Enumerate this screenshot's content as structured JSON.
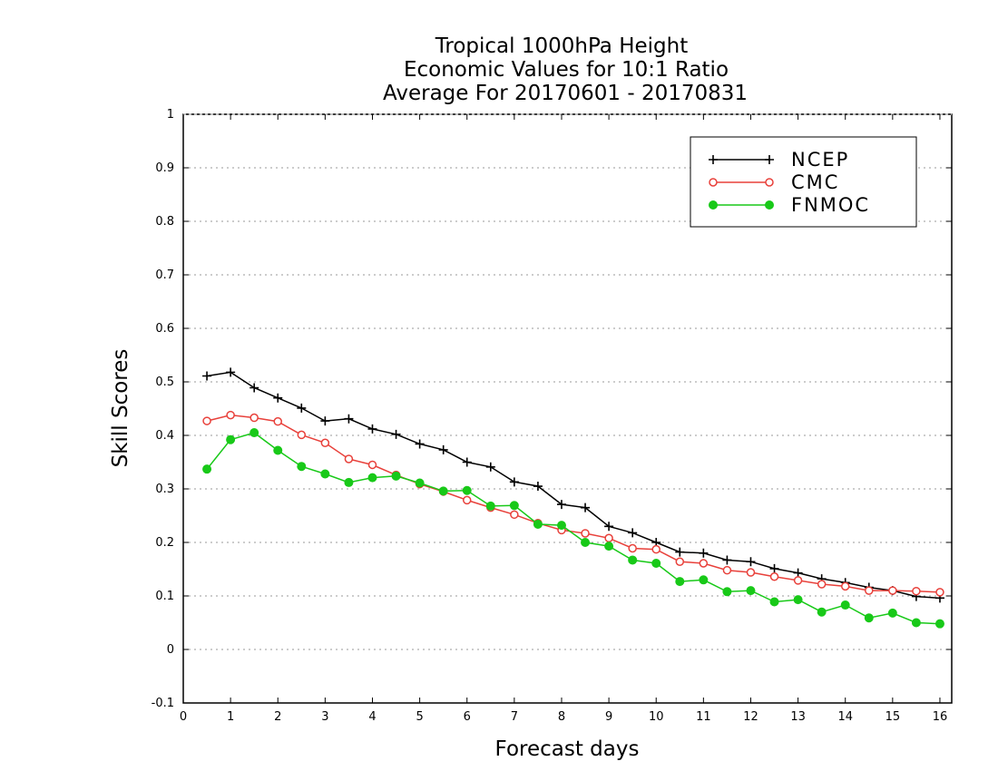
{
  "chart_data": {
    "type": "line",
    "title": [
      "Tropical 1000hPa Height",
      "Economic Values for 10:1 Ratio",
      "Average For 20170601 - 20170831"
    ],
    "xlabel": "Forecast days",
    "ylabel": "Skill Scores",
    "xlim": [
      0,
      16.25
    ],
    "ylim": [
      -0.1,
      1
    ],
    "xticks": [
      0,
      1,
      2,
      3,
      4,
      5,
      6,
      7,
      8,
      9,
      10,
      11,
      12,
      13,
      14,
      15,
      16
    ],
    "yticks": [
      -0.1,
      0,
      0.1,
      0.2,
      0.3,
      0.4,
      0.5,
      0.6,
      0.7,
      0.8,
      0.9,
      1
    ],
    "ytick_labels": [
      "-0.1",
      "0",
      "0.1",
      "0.2",
      "0.3",
      "0.4",
      "0.5",
      "0.6",
      "0.7",
      "0.8",
      "0.9",
      "1"
    ],
    "grid": true,
    "legend_position": "top-right",
    "x": [
      0.5,
      1,
      1.5,
      2,
      2.5,
      3,
      3.5,
      4,
      4.5,
      5,
      5.5,
      6,
      6.5,
      7,
      7.5,
      8,
      8.5,
      9,
      9.5,
      10,
      10.5,
      11,
      11.5,
      12,
      12.5,
      13,
      13.5,
      14,
      14.5,
      15,
      15.5,
      16
    ],
    "series": [
      {
        "name": "NCEP",
        "color": "#000000",
        "marker": "plus",
        "values": [
          0.511,
          0.518,
          0.489,
          0.47,
          0.451,
          0.427,
          0.431,
          0.412,
          0.402,
          0.384,
          0.373,
          0.35,
          0.341,
          0.313,
          0.305,
          0.271,
          0.265,
          0.23,
          0.218,
          0.2,
          0.182,
          0.18,
          0.167,
          0.164,
          0.151,
          0.143,
          0.132,
          0.125,
          0.116,
          0.11,
          0.099,
          0.096
        ]
      },
      {
        "name": "CMC",
        "color": "#e8403a",
        "marker": "open-circle",
        "values": [
          0.427,
          0.438,
          0.433,
          0.426,
          0.401,
          0.386,
          0.356,
          0.345,
          0.326,
          0.309,
          0.295,
          0.279,
          0.265,
          0.252,
          0.236,
          0.223,
          0.217,
          0.208,
          0.189,
          0.187,
          0.164,
          0.161,
          0.148,
          0.144,
          0.136,
          0.129,
          0.122,
          0.118,
          0.11,
          0.11,
          0.109,
          0.107
        ]
      },
      {
        "name": "FNMOC",
        "color": "#18c918",
        "marker": "filled-circle",
        "values": [
          0.337,
          0.392,
          0.405,
          0.372,
          0.342,
          0.328,
          0.312,
          0.321,
          0.324,
          0.311,
          0.296,
          0.297,
          0.268,
          0.269,
          0.234,
          0.232,
          0.2,
          0.193,
          0.167,
          0.161,
          0.127,
          0.13,
          0.108,
          0.11,
          0.089,
          0.093,
          0.07,
          0.083,
          0.059,
          0.068,
          0.05,
          0.048
        ]
      }
    ]
  }
}
